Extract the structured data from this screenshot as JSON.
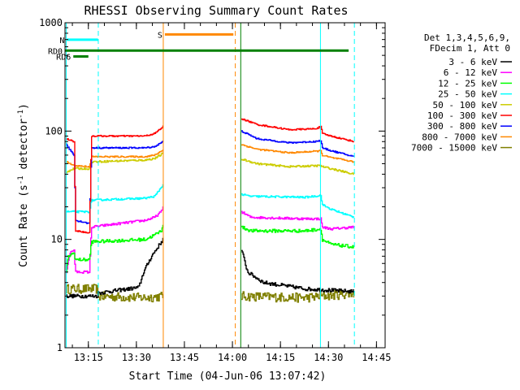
{
  "chart_data": {
    "type": "line",
    "title": "RHESSI Observing Summary Count Rates",
    "xlabel": "Start Time (04-Jun-06 13:07:42)",
    "ylabel_main": "Count Rate (s",
    "ylabel_sup1": "-1",
    "ylabel_mid": " detector",
    "ylabel_sup2": "-1",
    "ylabel_end": ")",
    "y_scale": "log",
    "ylim": [
      1,
      1000
    ],
    "xlim_minutes": [
      0,
      100
    ],
    "x_ticks": [
      {
        "t": 7.3,
        "label": "13:15"
      },
      {
        "t": 22.3,
        "label": "13:30"
      },
      {
        "t": 37.3,
        "label": "13:45"
      },
      {
        "t": 52.3,
        "label": "14:00"
      },
      {
        "t": 67.3,
        "label": "14:15"
      },
      {
        "t": 82.3,
        "label": "14:30"
      },
      {
        "t": 97.3,
        "label": "14:45"
      }
    ],
    "y_ticks": [
      {
        "v": 1,
        "label": "1"
      },
      {
        "v": 10,
        "label": "10"
      },
      {
        "v": 100,
        "label": "100"
      },
      {
        "v": 1000,
        "label": "1000"
      }
    ],
    "legend": {
      "header1": "Det 1,3,4,5,6,9,",
      "header2": "FDecim 1, Att 0",
      "entries": [
        {
          "label": "3 - 6 keV",
          "color": "#000000"
        },
        {
          "label": "6 - 12 keV",
          "color": "#ff00ff"
        },
        {
          "label": "12 - 25 keV",
          "color": "#00ff00"
        },
        {
          "label": "25 - 50 keV",
          "color": "#00ffff"
        },
        {
          "label": "50 - 100 keV",
          "color": "#cccc00"
        },
        {
          "label": "100 - 300 keV",
          "color": "#ff0000"
        },
        {
          "label": "300 - 800 keV",
          "color": "#0000ff"
        },
        {
          "label": "800 - 7000 keV",
          "color": "#ff8800"
        },
        {
          "label": "7000 - 15000 keV",
          "color": "#808000"
        }
      ]
    },
    "flags": [
      {
        "label": "N",
        "color": "#00ffff",
        "start": 0.6,
        "end": 10.3,
        "y": 697
      },
      {
        "label": "S",
        "color": "#ff8800",
        "start": 31.2,
        "end": 52.6,
        "y": 780
      },
      {
        "label": "RD0",
        "color": "#008000",
        "start": 0.0,
        "end": 88.6,
        "y": 553
      },
      {
        "label": "RD6",
        "color": "#008000",
        "start": 2.6,
        "end": 7.3,
        "y": 488
      }
    ],
    "vlines": [
      {
        "t": 0.4,
        "color": "#00ffff",
        "style": "solid"
      },
      {
        "t": 10.4,
        "color": "#00ffff",
        "style": "dash"
      },
      {
        "t": 30.7,
        "color": "#ff8800",
        "style": "solid"
      },
      {
        "t": 53.2,
        "color": "#ff8800",
        "style": "dash"
      },
      {
        "t": 54.9,
        "color": "#008000",
        "style": "solid"
      },
      {
        "t": 79.8,
        "color": "#00ffff",
        "style": "solid"
      },
      {
        "t": 90.4,
        "color": "#00ffff",
        "style": "dash"
      }
    ],
    "intervals": [
      [
        0.3,
        30.6
      ],
      [
        55.1,
        90.3
      ]
    ],
    "series": [
      {
        "color": "#808000",
        "label": "7000 - 15000 keV",
        "step": 0.27,
        "noise": 0.1,
        "points": [
          [
            0.3,
            3.5
          ],
          [
            10,
            3.5
          ],
          [
            10.3,
            3.0
          ],
          [
            25,
            2.9
          ],
          [
            30.6,
            3.0
          ],
          [
            55.1,
            3.0
          ],
          [
            75,
            2.9
          ],
          [
            90.3,
            3.2
          ]
        ]
      },
      {
        "color": "#000000",
        "label": "3 - 6 keV",
        "step": 0.25,
        "noise": 0.04,
        "points": [
          [
            0.3,
            3.0
          ],
          [
            10,
            3.0
          ],
          [
            10.3,
            3.2
          ],
          [
            23,
            3.6
          ],
          [
            24.5,
            5.0
          ],
          [
            27,
            7.0
          ],
          [
            30.6,
            10
          ],
          [
            55.1,
            8.0
          ],
          [
            57,
            5.0
          ],
          [
            62,
            4.0
          ],
          [
            75,
            3.5
          ],
          [
            90.3,
            3.3
          ]
        ]
      },
      {
        "color": "#ff00ff",
        "label": "6 - 12 keV",
        "step": 0.25,
        "noise": 0.025,
        "points": [
          [
            0.3,
            5.0
          ],
          [
            1.5,
            7.5
          ],
          [
            2.8,
            8.0
          ],
          [
            3.2,
            5.0
          ],
          [
            7.6,
            5.0
          ],
          [
            8.2,
            13
          ],
          [
            25,
            15
          ],
          [
            28,
            16
          ],
          [
            30,
            18
          ],
          [
            30.6,
            20
          ],
          [
            55.1,
            18
          ],
          [
            58,
            16
          ],
          [
            75,
            15.5
          ],
          [
            80,
            15.5
          ],
          [
            80.2,
            13
          ],
          [
            83,
            12.5
          ],
          [
            90.3,
            13
          ]
        ]
      },
      {
        "color": "#00ff00",
        "label": "12 - 25 keV",
        "step": 0.25,
        "noise": 0.035,
        "points": [
          [
            0.3,
            5.0
          ],
          [
            1.0,
            7.0
          ],
          [
            2.8,
            7.5
          ],
          [
            3.2,
            6.5
          ],
          [
            7.6,
            6.5
          ],
          [
            8.2,
            9.5
          ],
          [
            25,
            10
          ],
          [
            28,
            11
          ],
          [
            30,
            12
          ],
          [
            30.6,
            14
          ],
          [
            55.1,
            13
          ],
          [
            58,
            12
          ],
          [
            75,
            12
          ],
          [
            80,
            12.5
          ],
          [
            80.2,
            10
          ],
          [
            83,
            9
          ],
          [
            90.3,
            8.5
          ]
        ]
      },
      {
        "color": "#00ffff",
        "label": "25 - 50 keV",
        "step": 0.25,
        "noise": 0.02,
        "points": [
          [
            0.3,
            18
          ],
          [
            7.6,
            18
          ],
          [
            8.2,
            23
          ],
          [
            25,
            24
          ],
          [
            28,
            25
          ],
          [
            30.6,
            32
          ],
          [
            55.1,
            26
          ],
          [
            58,
            25
          ],
          [
            75,
            24.5
          ],
          [
            80,
            25.5
          ],
          [
            80.2,
            21
          ],
          [
            83,
            19
          ],
          [
            90.3,
            16
          ]
        ]
      },
      {
        "color": "#cccc00",
        "label": "50 - 100 keV",
        "step": 0.25,
        "noise": 0.02,
        "points": [
          [
            0.3,
            42
          ],
          [
            2.8,
            45
          ],
          [
            7.6,
            45
          ],
          [
            8.2,
            52
          ],
          [
            25,
            54
          ],
          [
            28,
            56
          ],
          [
            30.6,
            62
          ],
          [
            55.1,
            55
          ],
          [
            60,
            50
          ],
          [
            70,
            47
          ],
          [
            80,
            48
          ],
          [
            80.2,
            47
          ],
          [
            83,
            45
          ],
          [
            90.3,
            40
          ]
        ]
      },
      {
        "color": "#ff8800",
        "label": "800 - 7000 keV",
        "step": 0.25,
        "noise": 0.015,
        "points": [
          [
            0.3,
            52
          ],
          [
            2.8,
            48
          ],
          [
            7.6,
            47
          ],
          [
            8.2,
            58
          ],
          [
            25,
            58
          ],
          [
            28,
            60
          ],
          [
            30.6,
            67
          ],
          [
            55.1,
            75
          ],
          [
            60,
            68
          ],
          [
            70,
            63
          ],
          [
            78,
            65
          ],
          [
            80,
            66
          ],
          [
            80.2,
            60
          ],
          [
            83,
            57
          ],
          [
            90.3,
            52
          ]
        ]
      },
      {
        "color": "#0000ff",
        "label": "300 - 800 keV",
        "step": 0.25,
        "noise": 0.015,
        "points": [
          [
            0.3,
            75
          ],
          [
            2.8,
            60
          ],
          [
            3.3,
            15
          ],
          [
            7.6,
            14
          ],
          [
            8.2,
            70
          ],
          [
            25,
            70
          ],
          [
            28,
            72
          ],
          [
            30.6,
            80
          ],
          [
            55.1,
            100
          ],
          [
            60,
            85
          ],
          [
            70,
            78
          ],
          [
            78,
            80
          ],
          [
            80,
            82
          ],
          [
            80.2,
            70
          ],
          [
            83,
            66
          ],
          [
            90.3,
            58
          ]
        ]
      },
      {
        "color": "#ff0000",
        "label": "100 - 300 keV",
        "step": 0.25,
        "noise": 0.015,
        "points": [
          [
            0.3,
            85
          ],
          [
            2.8,
            80
          ],
          [
            3.3,
            12
          ],
          [
            7.6,
            11.5
          ],
          [
            8.2,
            90
          ],
          [
            25,
            90
          ],
          [
            28,
            95
          ],
          [
            30.6,
            110
          ],
          [
            55.1,
            130
          ],
          [
            60,
            115
          ],
          [
            70,
            103
          ],
          [
            78,
            105
          ],
          [
            80,
            110
          ],
          [
            80.2,
            95
          ],
          [
            83,
            90
          ],
          [
            90.3,
            80
          ]
        ]
      }
    ]
  }
}
